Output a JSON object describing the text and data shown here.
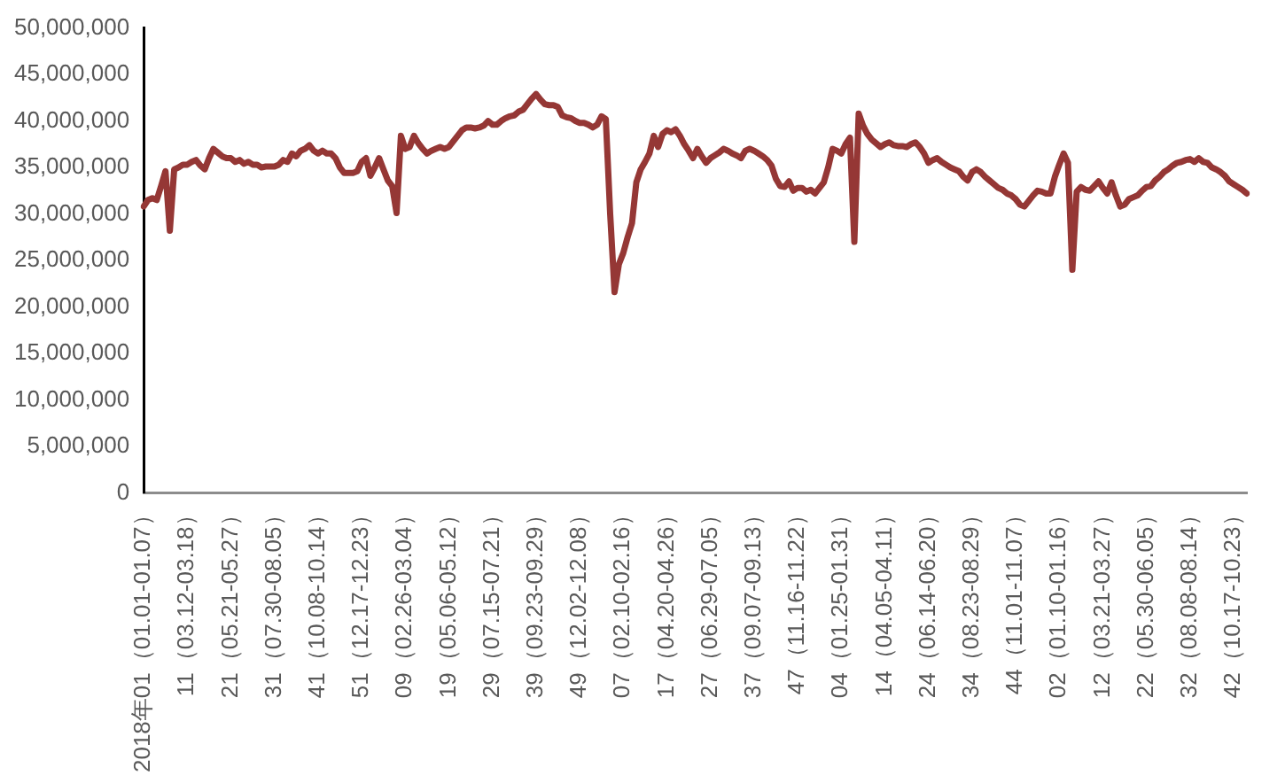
{
  "chart_data": {
    "type": "line",
    "categories": [
      "2018年01（01.01-01.07）",
      null,
      null,
      null,
      null,
      null,
      null,
      null,
      null,
      null,
      "11（03.12-03.18）",
      null,
      null,
      null,
      null,
      null,
      null,
      null,
      null,
      null,
      "21（05.21-05.27）",
      null,
      null,
      null,
      null,
      null,
      null,
      null,
      null,
      null,
      "31（07.30-08.05）",
      null,
      null,
      null,
      null,
      null,
      null,
      null,
      null,
      null,
      "41（10.08-10.14）",
      null,
      null,
      null,
      null,
      null,
      null,
      null,
      null,
      null,
      "51（12.17-12.23）",
      null,
      null,
      null,
      null,
      null,
      null,
      null,
      null,
      null,
      "09（02.26-03.04）",
      null,
      null,
      null,
      null,
      null,
      null,
      null,
      null,
      null,
      "19（05.06-05.12）",
      null,
      null,
      null,
      null,
      null,
      null,
      null,
      null,
      null,
      "29（07.15-07.21）",
      null,
      null,
      null,
      null,
      null,
      null,
      null,
      null,
      null,
      "39（09.23-09.29）",
      null,
      null,
      null,
      null,
      null,
      null,
      null,
      null,
      null,
      "49（12.02-12.08）",
      null,
      null,
      null,
      null,
      null,
      null,
      null,
      null,
      null,
      "07（02.10-02.16）",
      null,
      null,
      null,
      null,
      null,
      null,
      null,
      null,
      null,
      "17（04.20-04.26）",
      null,
      null,
      null,
      null,
      null,
      null,
      null,
      null,
      null,
      "27（06.29-07.05）",
      null,
      null,
      null,
      null,
      null,
      null,
      null,
      null,
      null,
      "37（09.07-09.13）",
      null,
      null,
      null,
      null,
      null,
      null,
      null,
      null,
      null,
      "47（11.16-11.22）",
      null,
      null,
      null,
      null,
      null,
      null,
      null,
      null,
      null,
      "04（01.25-01.31）",
      null,
      null,
      null,
      null,
      null,
      null,
      null,
      null,
      null,
      "14（04.05-04.11）",
      null,
      null,
      null,
      null,
      null,
      null,
      null,
      null,
      null,
      "24（06.14-06.20）",
      null,
      null,
      null,
      null,
      null,
      null,
      null,
      null,
      null,
      "34（08.23-08.29）",
      null,
      null,
      null,
      null,
      null,
      null,
      null,
      null,
      null,
      "44（11.01-11.07）",
      null,
      null,
      null,
      null,
      null,
      null,
      null,
      null,
      null,
      "02（01.10-01.16）",
      null,
      null,
      null,
      null,
      null,
      null,
      null,
      null,
      null,
      "12（03.21-03.27）",
      null,
      null,
      null,
      null,
      null,
      null,
      null,
      null,
      null,
      "22（05.30-06.05）",
      null,
      null,
      null,
      null,
      null,
      null,
      null,
      null,
      null,
      "32（08.08-08.14）",
      null,
      null,
      null,
      null,
      null,
      null,
      null,
      null,
      null,
      "42（10.17-10.23）",
      null,
      null,
      null
    ],
    "series": [
      {
        "color": "#953735",
        "values": [
          30800000,
          31500000,
          31700000,
          31500000,
          33000000,
          34600000,
          28200000,
          34800000,
          35000000,
          35300000,
          35300000,
          35600000,
          35800000,
          35200000,
          34800000,
          36000000,
          37000000,
          36600000,
          36200000,
          36000000,
          36000000,
          35600000,
          35800000,
          35400000,
          35600000,
          35300000,
          35300000,
          35000000,
          35100000,
          35100000,
          35100000,
          35300000,
          35800000,
          35600000,
          36500000,
          36200000,
          36800000,
          37000000,
          37400000,
          36800000,
          36500000,
          36800000,
          36500000,
          36500000,
          36000000,
          35000000,
          34400000,
          34400000,
          34400000,
          34600000,
          35600000,
          36000000,
          34100000,
          35000000,
          36000000,
          34800000,
          33600000,
          33000000,
          30100000,
          38400000,
          37000000,
          37200000,
          38400000,
          37600000,
          37000000,
          36500000,
          36800000,
          37000000,
          37200000,
          37000000,
          37200000,
          37800000,
          38400000,
          39000000,
          39300000,
          39300000,
          39200000,
          39300000,
          39500000,
          40000000,
          39600000,
          39600000,
          40000000,
          40300000,
          40500000,
          40600000,
          41000000,
          41200000,
          41800000,
          42400000,
          42900000,
          42300000,
          41800000,
          41700000,
          41700000,
          41500000,
          40600000,
          40400000,
          40300000,
          40000000,
          39800000,
          39800000,
          39600000,
          39300000,
          39600000,
          40500000,
          40200000,
          30000000,
          21600000,
          24600000,
          25800000,
          27500000,
          29000000,
          33400000,
          34800000,
          35600000,
          36500000,
          38400000,
          37200000,
          38600000,
          39000000,
          38800000,
          39100000,
          38400000,
          37500000,
          36800000,
          36000000,
          37000000,
          36200000,
          35500000,
          36000000,
          36300000,
          36600000,
          37000000,
          36800000,
          36500000,
          36300000,
          36000000,
          36800000,
          37000000,
          36800000,
          36500000,
          36200000,
          35800000,
          35200000,
          33800000,
          33000000,
          32900000,
          33500000,
          32500000,
          32800000,
          32800000,
          32400000,
          32600000,
          32200000,
          32800000,
          33400000,
          35000000,
          37000000,
          36800000,
          36500000,
          37500000,
          38200000,
          27000000,
          40800000,
          39500000,
          38600000,
          38000000,
          37600000,
          37200000,
          37500000,
          37700000,
          37400000,
          37300000,
          37300000,
          37200000,
          37500000,
          37700000,
          37200000,
          36500000,
          35500000,
          35800000,
          36000000,
          35600000,
          35300000,
          35000000,
          34800000,
          34600000,
          34000000,
          33600000,
          34500000,
          34800000,
          34500000,
          34000000,
          33600000,
          33200000,
          32800000,
          32600000,
          32200000,
          32000000,
          31600000,
          31000000,
          30800000,
          31400000,
          32000000,
          32500000,
          32400000,
          32200000,
          32200000,
          34000000,
          35300000,
          36500000,
          35500000,
          24000000,
          32400000,
          32900000,
          32600000,
          32500000,
          33000000,
          33500000,
          32800000,
          32200000,
          33400000,
          32000000,
          30800000,
          31000000,
          31600000,
          31800000,
          32000000,
          32500000,
          32900000,
          33000000,
          33600000,
          34000000,
          34500000,
          34800000,
          35200000,
          35500000,
          35600000,
          35800000,
          35900000,
          35600000,
          36000000,
          35600000,
          35500000,
          35000000,
          34800000,
          34500000,
          34100000,
          33500000,
          33200000,
          32900000,
          32600000,
          32200000
        ]
      }
    ],
    "ylim": [
      0,
      50000000
    ],
    "yticks": [
      {
        "value": 0,
        "label": "0"
      },
      {
        "value": 5000000,
        "label": "5,000,000"
      },
      {
        "value": 10000000,
        "label": "10,000,000"
      },
      {
        "value": 15000000,
        "label": "15,000,000"
      },
      {
        "value": 20000000,
        "label": "20,000,000"
      },
      {
        "value": 25000000,
        "label": "25,000,000"
      },
      {
        "value": 30000000,
        "label": "30,000,000"
      },
      {
        "value": 35000000,
        "label": "35,000,000"
      },
      {
        "value": 40000000,
        "label": "40,000,000"
      },
      {
        "value": 45000000,
        "label": "45,000,000"
      },
      {
        "value": 50000000,
        "label": "50,000,000"
      }
    ],
    "grid": false,
    "legend": false,
    "marker": "none",
    "line_style": "solid"
  }
}
